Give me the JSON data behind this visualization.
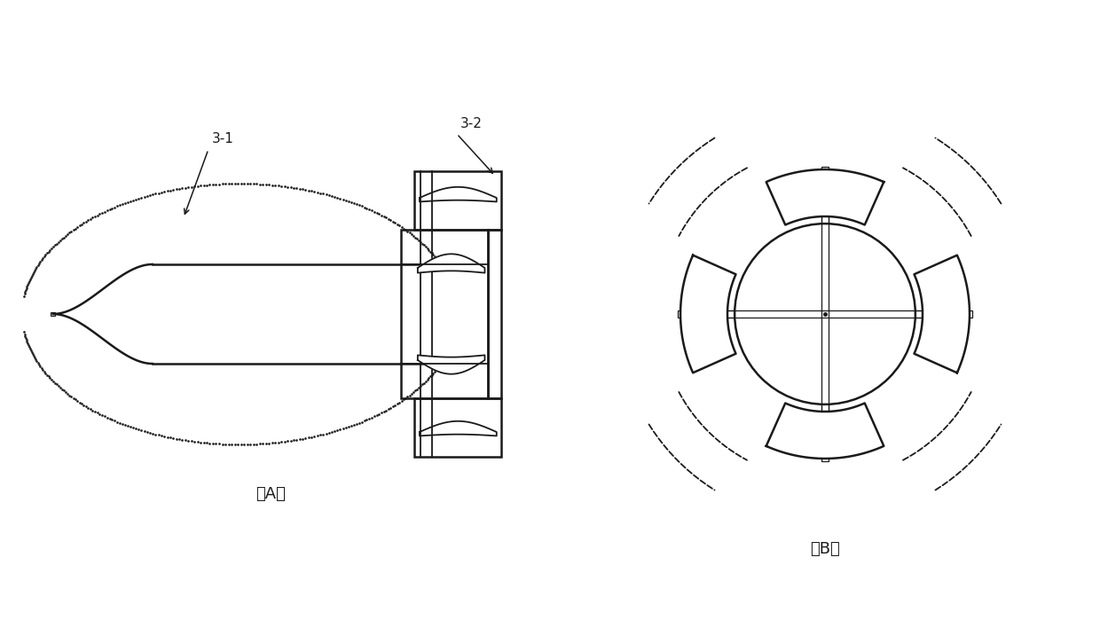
{
  "fig_width": 12.4,
  "fig_height": 7.08,
  "bg_color": "#ffffff",
  "line_color": "#1a1a1a",
  "label_A": "（A）",
  "label_B": "（B）",
  "label_31": "3-1",
  "label_32": "3-2",
  "font_size_label": 13,
  "font_size_annot": 11
}
